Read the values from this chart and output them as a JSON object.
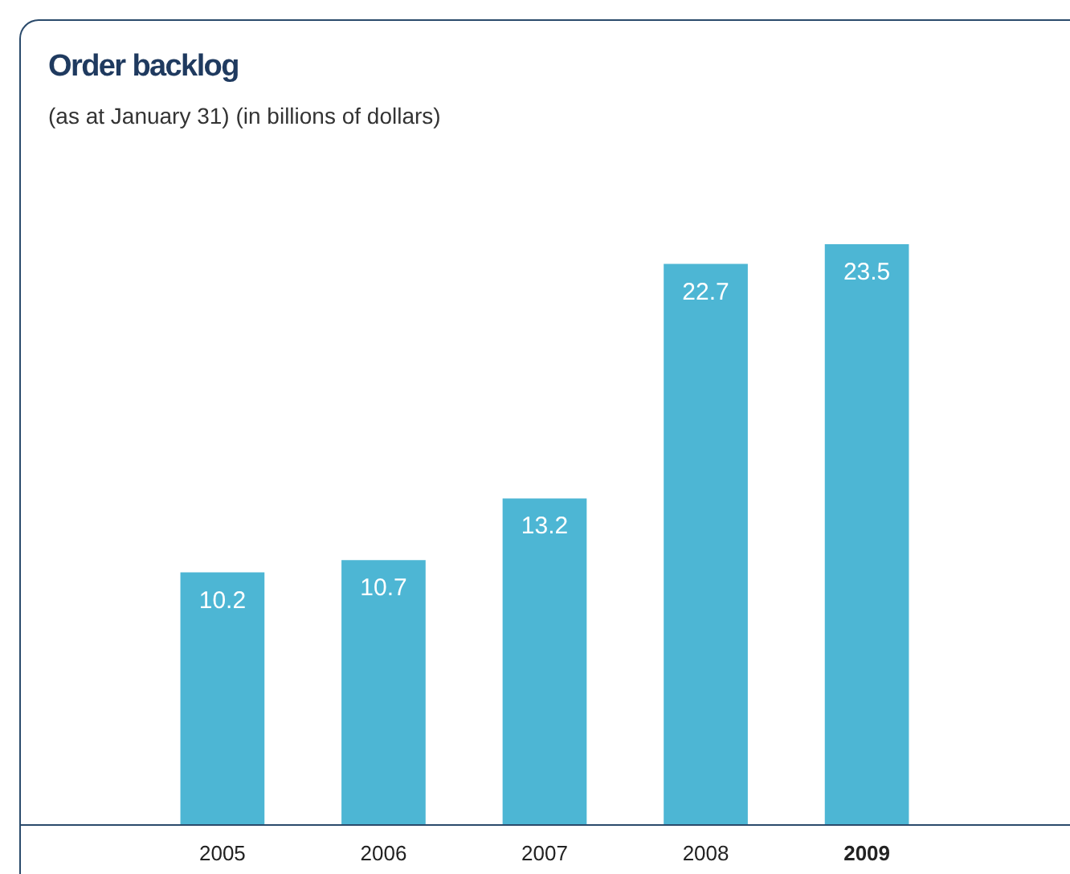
{
  "chart_data": {
    "type": "bar",
    "title": "Order backlog",
    "subtitle": "(as at January 31) (in billions of dollars)",
    "categories": [
      "2005",
      "2006",
      "2007",
      "2008",
      "2009"
    ],
    "values": [
      10.2,
      10.7,
      13.2,
      22.7,
      23.5
    ],
    "color": "#4db6d4",
    "data_labels": true
  }
}
